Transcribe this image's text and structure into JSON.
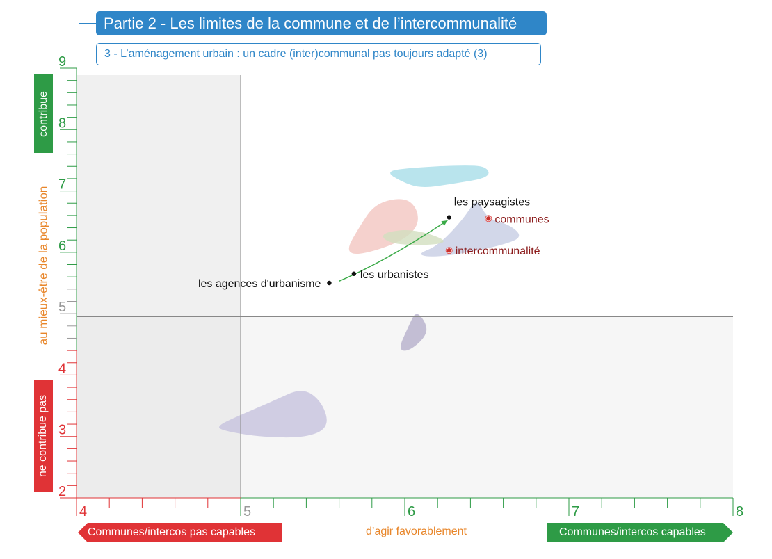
{
  "header": {
    "title": "Partie 2 - Les limites de la commune et de l’intercommunalité",
    "subtitle": "3 - L’aménagement urbain : un cadre (inter)communal pas toujours adapté (3)"
  },
  "colors": {
    "header_blue": "#2f86c8",
    "green": "#2e9b46",
    "red": "#e03336",
    "orange": "#e8862a",
    "dark_red": "#8b1a1a"
  },
  "chart_data": {
    "type": "scatter",
    "xlim": [
      4,
      8
    ],
    "ylim": [
      2,
      9
    ],
    "x_ticks": [
      "4",
      "5",
      "6",
      "7",
      "8"
    ],
    "y_ticks": [
      "2",
      "3",
      "4",
      "5",
      "6",
      "7",
      "8",
      "9"
    ],
    "ylabel": "au mieux-être de la population",
    "ylabel_top": "contribue",
    "ylabel_bottom": "ne contribue pas",
    "xlabel": "d’agir favorablement",
    "xlabel_left": "Communes/intercos pas capables",
    "xlabel_right": "Communes/intercos capables",
    "reference_lines": {
      "x": 5,
      "y": 4.95
    },
    "grid": false,
    "points": [
      {
        "label": "les agences d'urbanisme",
        "x": 5.54,
        "y": 5.5,
        "color": "#111111"
      },
      {
        "label": "les urbanistes",
        "x": 5.69,
        "y": 5.65,
        "color": "#111111"
      },
      {
        "label": "les paysagistes",
        "x": 6.27,
        "y": 6.57,
        "color": "#111111"
      },
      {
        "label": "communes",
        "x": 6.51,
        "y": 6.55,
        "color": "#8b1a1a"
      },
      {
        "label": "intercommunalité",
        "x": 6.27,
        "y": 6.03,
        "color": "#8b1a1a"
      }
    ],
    "arrow": {
      "from": [
        5.6,
        5.53
      ],
      "to": [
        6.26,
        6.52
      ],
      "color": "#3aaa47"
    },
    "regions": [
      {
        "color": "#a8dde9",
        "points": [
          [
            5.88,
            7.32
          ],
          [
            6.05,
            7.38
          ],
          [
            6.35,
            7.42
          ],
          [
            6.5,
            7.4
          ],
          [
            6.52,
            7.22
          ],
          [
            6.3,
            7.12
          ],
          [
            6.1,
            7.04
          ],
          [
            5.98,
            7.15
          ]
        ]
      },
      {
        "color": "#f2c6c0",
        "points": [
          [
            5.64,
            6.02
          ],
          [
            5.72,
            6.4
          ],
          [
            5.82,
            6.8
          ],
          [
            6.0,
            6.9
          ],
          [
            6.08,
            6.7
          ],
          [
            6.08,
            6.4
          ],
          [
            5.96,
            6.15
          ],
          [
            5.72,
            5.95
          ]
        ]
      },
      {
        "color": "#c7cde3",
        "points": [
          [
            6.08,
            5.98
          ],
          [
            6.2,
            6.1
          ],
          [
            6.36,
            6.55
          ],
          [
            6.44,
            6.9
          ],
          [
            6.5,
            6.55
          ],
          [
            6.64,
            6.45
          ],
          [
            6.72,
            6.25
          ],
          [
            6.6,
            6.12
          ],
          [
            6.34,
            5.97
          ],
          [
            6.14,
            5.92
          ]
        ]
      },
      {
        "color": "#d2dfbf",
        "points": [
          [
            5.88,
            6.33
          ],
          [
            6.05,
            6.38
          ],
          [
            6.26,
            6.2
          ],
          [
            6.2,
            6.12
          ],
          [
            5.96,
            6.12
          ],
          [
            5.86,
            6.22
          ]
        ]
      },
      {
        "color": "#b7b0cc",
        "points": [
          [
            5.96,
            4.42
          ],
          [
            6.02,
            4.78
          ],
          [
            6.07,
            5.06
          ],
          [
            6.14,
            4.8
          ],
          [
            6.12,
            4.6
          ],
          [
            6.02,
            4.38
          ]
        ]
      },
      {
        "color": "#c7c3de",
        "points": [
          [
            4.86,
            3.18
          ],
          [
            5.0,
            3.35
          ],
          [
            5.2,
            3.58
          ],
          [
            5.38,
            3.8
          ],
          [
            5.5,
            3.55
          ],
          [
            5.54,
            3.15
          ],
          [
            5.4,
            2.98
          ],
          [
            5.12,
            2.99
          ],
          [
            4.88,
            3.1
          ]
        ]
      }
    ]
  }
}
